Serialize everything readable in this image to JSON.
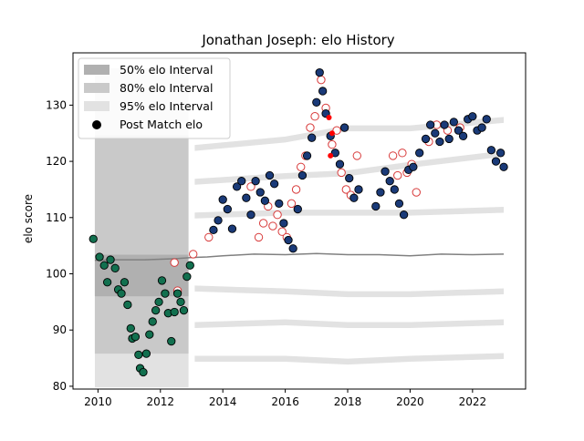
{
  "chart_data": {
    "type": "scatter",
    "title": "Jonathan Joseph: elo History",
    "xlabel": "",
    "ylabel": "elo score",
    "xlim": [
      2009.2,
      2023.7
    ],
    "ylim": [
      79.5,
      139.3
    ],
    "x_ticks": [
      2010,
      2012,
      2014,
      2016,
      2018,
      2020,
      2022
    ],
    "y_ticks": [
      80,
      90,
      100,
      110,
      120,
      130
    ],
    "grid": false,
    "legend": {
      "placement": "top-left",
      "entries": [
        "50% elo Interval",
        "80% elo Interval",
        "95% elo Interval",
        "Post Match elo"
      ]
    },
    "colors": {
      "band50": "#b0b0b0",
      "band80": "#c9c9c9",
      "band95": "#e2e2e2",
      "early_points": "#12704f",
      "later_points": "#1a3a78",
      "hollow_point_edge": "#d83a3a",
      "red_dot": "#ff0000",
      "median_line": "#808080"
    },
    "interval_bands": {
      "x": [
        2009.9,
        2012.9
      ],
      "band95": [
        102.8,
        136.6
      ],
      "band80": [
        103.2,
        124.6
      ],
      "band50": [
        96.0,
        103.4
      ],
      "lower_band95": [
        79.8,
        102.8
      ],
      "lower_band80": [
        85.8,
        103.0
      ]
    },
    "median_line": {
      "x": [
        2009.9,
        2010.5,
        2011.0,
        2011.5,
        2012.0,
        2012.5,
        2013.0,
        2013.5,
        2014.0,
        2015.0,
        2016.0,
        2017.0,
        2018.0,
        2019.0,
        2020.0,
        2021.0,
        2022.0,
        2023.0
      ],
      "y": [
        102.4,
        102.5,
        102.5,
        102.5,
        102.6,
        102.7,
        102.9,
        103.0,
        103.2,
        103.5,
        103.4,
        103.6,
        103.4,
        103.4,
        103.2,
        103.5,
        103.4,
        103.5
      ]
    },
    "series": [
      {
        "name": "",
        "x": [
          2009.85,
          2010.05,
          2010.2,
          2010.3,
          2010.4,
          2010.55,
          2010.65,
          2010.75,
          2010.85,
          2010.95,
          2011.05,
          2011.1,
          2011.2,
          2011.3,
          2011.35,
          2011.45,
          2011.55,
          2011.65,
          2011.75,
          2011.85,
          2011.95,
          2012.05,
          2012.15,
          2012.25,
          2012.35,
          2012.45,
          2012.55,
          2012.65,
          2012.75,
          2012.85,
          2012.95
        ],
        "y": [
          106.2,
          103.0,
          101.5,
          98.5,
          102.5,
          101.0,
          97.2,
          96.5,
          98.5,
          94.5,
          90.3,
          88.5,
          88.8,
          85.6,
          83.2,
          82.5,
          85.8,
          89.2,
          91.5,
          93.5,
          95.0,
          98.8,
          96.5,
          93.0,
          88.0,
          93.2,
          96.5,
          95.0,
          93.5,
          99.5,
          101.5
        ]
      },
      {
        "name": "",
        "x": [
          2013.7,
          2013.85,
          2014.0,
          2014.15,
          2014.3,
          2014.45,
          2014.6,
          2014.75,
          2014.9,
          2015.05,
          2015.2,
          2015.35,
          2015.5,
          2015.65,
          2015.8,
          2015.95,
          2016.1,
          2016.25,
          2016.4,
          2016.55,
          2016.7,
          2016.85,
          2017.0,
          2017.1,
          2017.2,
          2017.3,
          2017.45,
          2017.6,
          2017.75,
          2017.9,
          2018.05,
          2018.2,
          2018.35,
          2018.9,
          2019.05,
          2019.2,
          2019.35,
          2019.5,
          2019.65,
          2019.8,
          2019.95,
          2020.1,
          2020.3,
          2020.5,
          2020.65,
          2020.8,
          2020.95,
          2021.1,
          2021.25,
          2021.4,
          2021.55,
          2021.7,
          2021.85,
          2022.0,
          2022.15,
          2022.3,
          2022.45,
          2022.6,
          2022.75,
          2022.9,
          2023.0
        ],
        "y": [
          107.8,
          109.5,
          113.2,
          111.5,
          108.0,
          115.5,
          116.5,
          113.5,
          110.5,
          116.5,
          114.5,
          113.0,
          117.5,
          116.0,
          112.5,
          109.0,
          106.0,
          104.5,
          111.5,
          117.5,
          121.0,
          124.2,
          130.5,
          135.8,
          132.5,
          128.5,
          124.5,
          121.5,
          119.5,
          126.0,
          117.0,
          113.5,
          115.0,
          112.0,
          114.5,
          118.2,
          116.5,
          115.0,
          112.5,
          110.5,
          118.5,
          119.0,
          121.5,
          124.0,
          126.5,
          125.0,
          123.5,
          126.5,
          124.0,
          127.0,
          125.5,
          124.5,
          127.5,
          128.0,
          125.5,
          126.0,
          127.5,
          122.0,
          120.0,
          121.5,
          119.0
        ]
      },
      {
        "name": "",
        "x": [
          2012.45,
          2012.55,
          2013.05,
          2013.55,
          2014.9,
          2015.15,
          2015.3,
          2015.45,
          2015.6,
          2015.75,
          2015.9,
          2016.05,
          2016.2,
          2016.35,
          2016.5,
          2016.65,
          2016.8,
          2016.95,
          2017.15,
          2017.3,
          2017.5,
          2017.65,
          2017.8,
          2017.95,
          2018.1,
          2018.3,
          2019.45,
          2019.6,
          2019.75,
          2019.9,
          2020.05,
          2020.2,
          2020.6,
          2020.85,
          2021.2,
          2021.6
        ],
        "y": [
          102.0,
          97.0,
          103.5,
          106.5,
          115.5,
          106.5,
          109.0,
          112.0,
          108.5,
          110.5,
          107.5,
          106.5,
          112.5,
          115.0,
          119.0,
          121.0,
          126.0,
          128.0,
          134.5,
          129.5,
          123.0,
          125.5,
          118.0,
          115.0,
          114.0,
          121.0,
          121.0,
          117.5,
          121.5,
          118.0,
          119.5,
          114.5,
          123.5,
          126.5,
          125.5,
          126.0
        ]
      },
      {
        "name": "",
        "x": [
          2017.4,
          2017.5,
          2017.45
        ],
        "y": [
          127.8,
          125.0,
          121.0
        ]
      }
    ],
    "outer_bands": [
      {
        "x": [
          2013.1,
          2016.0,
          2018.0,
          2020.0,
          2023.0
        ],
        "y": [
          122.5,
          124.0,
          126.0,
          126.0,
          127.5
        ]
      },
      {
        "x": [
          2013.1,
          2016.0,
          2018.0,
          2020.0,
          2023.0
        ],
        "y": [
          116.5,
          117.5,
          118.0,
          119.5,
          121.5
        ]
      },
      {
        "x": [
          2013.1,
          2016.0,
          2018.0,
          2020.0,
          2023.0
        ],
        "y": [
          110.5,
          111.0,
          111.0,
          111.0,
          111.5
        ]
      },
      {
        "x": [
          2013.1,
          2016.0,
          2018.0,
          2020.0,
          2023.0
        ],
        "y": [
          97.5,
          97.0,
          96.5,
          96.5,
          97.0
        ]
      },
      {
        "x": [
          2013.1,
          2016.0,
          2018.0,
          2020.0,
          2023.0
        ],
        "y": [
          91.0,
          91.5,
          91.0,
          91.0,
          91.5
        ]
      },
      {
        "x": [
          2013.1,
          2016.0,
          2018.0,
          2020.0,
          2023.0
        ],
        "y": [
          85.0,
          85.0,
          84.5,
          85.0,
          85.5
        ]
      }
    ]
  }
}
